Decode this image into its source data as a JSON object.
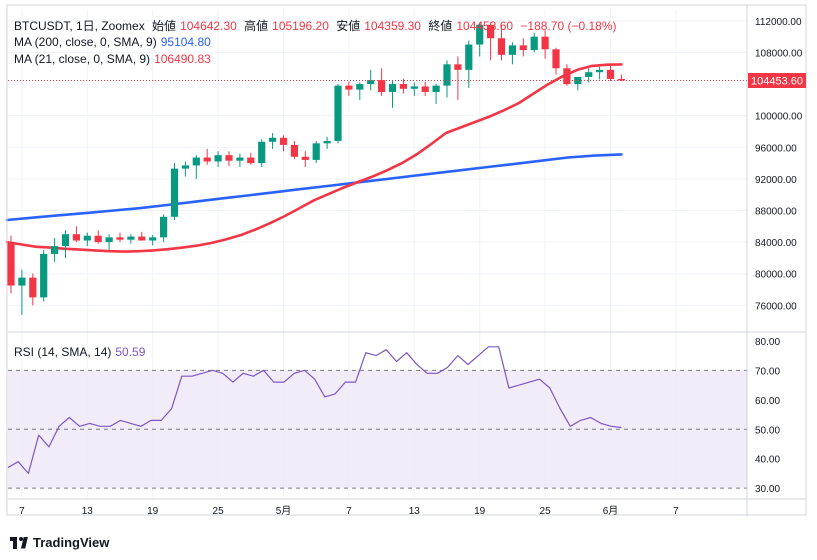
{
  "legend": {
    "symbol": "BTCUSDT, 1日, Zoomex",
    "open_label": "始値",
    "open": "104642.30",
    "high_label": "高値",
    "high": "105196.20",
    "low_label": "安値",
    "low": "104359.30",
    "close_label": "終値",
    "close": "104453.60",
    "change": "−188.70 (−0.18%)",
    "ma200_label": "MA (200, close, 0, SMA, 9)",
    "ma200_value": "95104.80",
    "ma21_label": "MA (21, close, 0, SMA, 9)",
    "ma21_value": "106490.83",
    "rsi_label": "RSI (14, SMA, 14)",
    "rsi_value": "50.59"
  },
  "last_price_label": "104453.60",
  "brand": "TradingView",
  "colors": {
    "up": "#089981",
    "down": "#f23645",
    "ma200": "#2962ff",
    "ma21": "#f23645",
    "rsi": "#7e57c2",
    "rsi_band": "#ede7f6"
  },
  "chart_data": [
    {
      "type": "candlestick",
      "title": "BTCUSDT, 1日, Zoomex",
      "y_ticks": [
        "76000.00",
        "80000.00",
        "84000.00",
        "88000.00",
        "92000.00",
        "96000.00",
        "100000.00",
        "104000.00",
        "108000.00",
        "112000.00"
      ],
      "ylim": [
        73000,
        113500
      ],
      "x_ticks": [
        {
          "index": 1,
          "label": "7"
        },
        {
          "index": 7,
          "label": "13"
        },
        {
          "index": 13,
          "label": "19"
        },
        {
          "index": 19,
          "label": "25"
        },
        {
          "index": 25,
          "label": "5月"
        },
        {
          "index": 31,
          "label": "7"
        },
        {
          "index": 37,
          "label": "13"
        },
        {
          "index": 43,
          "label": "19"
        },
        {
          "index": 49,
          "label": "25"
        },
        {
          "index": 55,
          "label": "6月"
        },
        {
          "index": 61,
          "label": "7"
        }
      ],
      "candles": [
        [
          84000,
          84800,
          77500,
          78500
        ],
        [
          78500,
          80500,
          74800,
          79500
        ],
        [
          79500,
          80000,
          76000,
          77000
        ],
        [
          77000,
          83000,
          76500,
          82500
        ],
        [
          82500,
          84500,
          81500,
          83500
        ],
        [
          83500,
          85500,
          82000,
          85000
        ],
        [
          85000,
          86000,
          84000,
          84200
        ],
        [
          84200,
          85200,
          83500,
          84800
        ],
        [
          84800,
          85500,
          83800,
          84000
        ],
        [
          84000,
          85000,
          83000,
          84600
        ],
        [
          84600,
          85200,
          84000,
          84300
        ],
        [
          84300,
          85000,
          83800,
          84700
        ],
        [
          84700,
          85300,
          84200,
          84200
        ],
        [
          84200,
          84900,
          83600,
          84600
        ],
        [
          84600,
          87500,
          84000,
          87200
        ],
        [
          87200,
          94000,
          86800,
          93300
        ],
        [
          93300,
          94200,
          92300,
          93700
        ],
        [
          93700,
          95000,
          92000,
          94700
        ],
        [
          94700,
          95800,
          93800,
          94200
        ],
        [
          94200,
          95500,
          93500,
          95000
        ],
        [
          95000,
          95500,
          93600,
          94300
        ],
        [
          94300,
          95200,
          93500,
          94700
        ],
        [
          94700,
          95300,
          93800,
          94000
        ],
        [
          94000,
          97000,
          93500,
          96700
        ],
        [
          96700,
          97800,
          95800,
          97200
        ],
        [
          97200,
          97500,
          95500,
          96300
        ],
        [
          96300,
          96800,
          94500,
          94800
        ],
        [
          94800,
          95500,
          93500,
          94400
        ],
        [
          94400,
          96800,
          94000,
          96500
        ],
        [
          96500,
          97300,
          95800,
          96800
        ],
        [
          96800,
          104000,
          96500,
          103800
        ],
        [
          103800,
          104300,
          102500,
          103300
        ],
        [
          103300,
          104200,
          102000,
          104000
        ],
        [
          104000,
          105800,
          103200,
          104500
        ],
        [
          104500,
          106000,
          102500,
          103000
        ],
        [
          103000,
          104500,
          101000,
          104000
        ],
        [
          104000,
          104700,
          102800,
          103400
        ],
        [
          103400,
          104200,
          102500,
          103700
        ],
        [
          103700,
          104300,
          102500,
          103000
        ],
        [
          103000,
          104000,
          101500,
          103800
        ],
        [
          103800,
          107000,
          102300,
          106500
        ],
        [
          106500,
          107500,
          102000,
          105800
        ],
        [
          105800,
          109500,
          103500,
          109000
        ],
        [
          109000,
          111800,
          107500,
          111500
        ],
        [
          111500,
          111800,
          107000,
          109800
        ],
        [
          109800,
          111500,
          107000,
          107700
        ],
        [
          107700,
          109300,
          106500,
          108900
        ],
        [
          108900,
          109800,
          107500,
          108300
        ],
        [
          108300,
          110500,
          108000,
          110000
        ],
        [
          110000,
          110800,
          107200,
          108400
        ],
        [
          108400,
          108600,
          105200,
          106000
        ],
        [
          106000,
          106500,
          103800,
          104000
        ],
        [
          104000,
          104800,
          103200,
          104900
        ],
        [
          104900,
          106000,
          104200,
          105500
        ],
        [
          105500,
          106200,
          104600,
          105800
        ],
        [
          105800,
          106400,
          104400,
          104650
        ],
        [
          104650,
          105200,
          104360,
          104454
        ]
      ],
      "series": [
        {
          "name": "MA (200, close, 0, SMA, 9)",
          "color": "#2962ff",
          "values": [
            86800,
            87100,
            87400,
            87700,
            88000,
            88300,
            88700,
            89100,
            89500,
            89900,
            90300,
            90700,
            91100,
            91500,
            91900,
            92300,
            92700,
            93100,
            93500,
            93900,
            94300,
            94700,
            94950,
            95104
          ]
        },
        {
          "name": "MA (21, close, 0, SMA, 9)",
          "color": "#f23645",
          "values": [
            84000,
            83700,
            83400,
            83300,
            83150,
            83050,
            82950,
            82850,
            82800,
            82850,
            82950,
            83100,
            83300,
            83550,
            83900,
            84350,
            84900,
            85600,
            86400,
            87300,
            88300,
            89300,
            90100,
            90900,
            91600,
            92300,
            93100,
            94000,
            95100,
            96400,
            97800,
            98500,
            99200,
            99900,
            100700,
            101600,
            102800,
            104000,
            105000,
            105800,
            106300,
            106450,
            106491
          ]
        }
      ]
    },
    {
      "type": "line",
      "title": "RSI (14, SMA, 14)",
      "y_ticks": [
        "30.00",
        "40.00",
        "50.00",
        "60.00",
        "70.00",
        "80.00"
      ],
      "ylim": [
        27,
        82
      ],
      "bands": [
        30,
        70
      ],
      "midline": 50,
      "series": [
        {
          "name": "RSI (14, SMA, 14)",
          "color": "#7e57c2",
          "values": [
            37,
            39,
            35,
            48,
            44,
            51,
            54,
            51,
            52,
            51,
            51,
            53,
            52,
            51,
            53,
            53,
            57,
            68,
            68,
            69,
            70,
            69,
            66,
            69,
            68,
            70,
            66,
            66,
            69,
            70,
            67,
            61,
            62,
            66,
            66,
            76,
            75,
            77,
            73,
            76,
            72,
            69,
            69,
            71,
            75,
            72,
            75,
            78,
            78,
            64,
            65,
            66,
            67,
            64,
            57,
            51,
            53,
            54,
            52,
            51,
            50.59
          ]
        }
      ]
    }
  ]
}
